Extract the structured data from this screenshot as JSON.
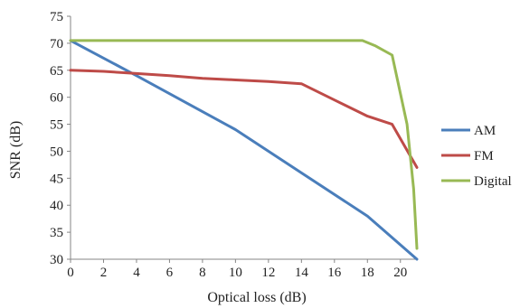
{
  "chart_data": {
    "type": "line",
    "title": "",
    "xlabel": "Optical loss (dB)",
    "ylabel": "SNR (dB)",
    "xlim": [
      0,
      21
    ],
    "ylim": [
      30,
      75
    ],
    "x_ticks": [
      0,
      2,
      4,
      6,
      8,
      10,
      12,
      14,
      16,
      18,
      20
    ],
    "y_ticks": [
      30,
      35,
      40,
      45,
      50,
      55,
      60,
      65,
      70,
      75
    ],
    "grid": false,
    "legend_position": "right",
    "series": [
      {
        "name": "AM",
        "color": "#4a7ebb",
        "points": [
          [
            0,
            70.5
          ],
          [
            4,
            64
          ],
          [
            10,
            54
          ],
          [
            14,
            46
          ],
          [
            18,
            38
          ],
          [
            21,
            30
          ]
        ]
      },
      {
        "name": "FM",
        "color": "#be4b48",
        "points": [
          [
            0,
            65
          ],
          [
            2,
            64.8
          ],
          [
            4,
            64.4
          ],
          [
            6,
            64
          ],
          [
            8,
            63.5
          ],
          [
            10,
            63.2
          ],
          [
            12,
            62.9
          ],
          [
            14,
            62.5
          ],
          [
            16,
            59.5
          ],
          [
            18,
            56.5
          ],
          [
            19.5,
            55
          ],
          [
            21,
            47
          ]
        ]
      },
      {
        "name": "Digital",
        "color": "#98b954",
        "points": [
          [
            0,
            70.5
          ],
          [
            10,
            70.5
          ],
          [
            17.7,
            70.5
          ],
          [
            18.5,
            69.5
          ],
          [
            19.5,
            67.8
          ],
          [
            20.4,
            55
          ],
          [
            20.8,
            43
          ],
          [
            21,
            32
          ]
        ]
      }
    ]
  }
}
